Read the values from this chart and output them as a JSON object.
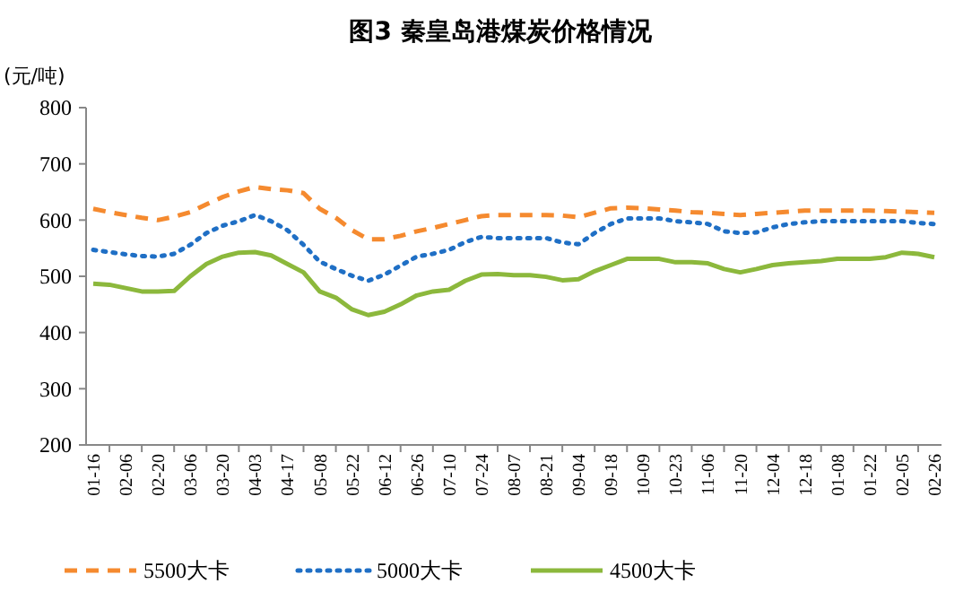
{
  "chart_data": {
    "type": "line",
    "title": "图3  秦皇岛港煤炭价格情况",
    "ylabel": "(元/吨)",
    "categories": [
      "01-16",
      null,
      "02-06",
      null,
      "02-20",
      null,
      "03-06",
      null,
      "03-20",
      null,
      "04-03",
      null,
      "04-17",
      null,
      "05-08",
      null,
      "05-22",
      null,
      "06-12",
      null,
      "06-26",
      null,
      "07-10",
      null,
      "07-24",
      null,
      "08-07",
      null,
      "08-21",
      null,
      "09-04",
      null,
      "09-18",
      null,
      "10-09",
      null,
      "10-23",
      null,
      "11-06",
      null,
      "11-20",
      null,
      "12-04",
      null,
      "12-18",
      null,
      "01-08",
      null,
      "01-22",
      null,
      "02-05",
      null,
      "02-26"
    ],
    "ylim": [
      200,
      800
    ],
    "yticks": [
      200,
      300,
      400,
      500,
      600,
      700,
      800
    ],
    "grid": false,
    "legend": "bottom",
    "marker": "none",
    "series": [
      {
        "name": "5500大卡",
        "color": "#f58a2f",
        "line_style": "dashed",
        "values": [
          620,
          614,
          609,
          604,
          600,
          606,
          614,
          628,
          641,
          651,
          659,
          655,
          653,
          648,
          620,
          604,
          582,
          566,
          566,
          572,
          580,
          586,
          593,
          600,
          607,
          609,
          609,
          609,
          609,
          608,
          605,
          613,
          621,
          622,
          621,
          619,
          617,
          614,
          613,
          611,
          609,
          611,
          613,
          615,
          617,
          617,
          617,
          617,
          617,
          616,
          615,
          614,
          613
        ]
      },
      {
        "name": "5000大卡",
        "color": "#1f6fc5",
        "line_style": "dotted",
        "values": [
          547,
          543,
          539,
          536,
          535,
          540,
          556,
          577,
          590,
          598,
          609,
          598,
          582,
          556,
          526,
          513,
          501,
          492,
          503,
          519,
          535,
          540,
          547,
          561,
          570,
          568,
          568,
          568,
          568,
          560,
          557,
          577,
          593,
          603,
          603,
          603,
          598,
          596,
          593,
          580,
          577,
          578,
          587,
          593,
          596,
          598,
          598,
          598,
          598,
          598,
          598,
          595,
          593
        ]
      },
      {
        "name": "4500大卡",
        "color": "#8cb83c",
        "line_style": "solid",
        "values": [
          487,
          485,
          479,
          473,
          473,
          474,
          500,
          522,
          535,
          542,
          543,
          537,
          522,
          507,
          473,
          462,
          441,
          431,
          437,
          450,
          466,
          473,
          476,
          492,
          503,
          504,
          502,
          502,
          499,
          493,
          495,
          509,
          520,
          531,
          531,
          531,
          525,
          525,
          523,
          513,
          507,
          513,
          520,
          523,
          525,
          527,
          531,
          531,
          531,
          534,
          542,
          540,
          534
        ]
      }
    ]
  }
}
